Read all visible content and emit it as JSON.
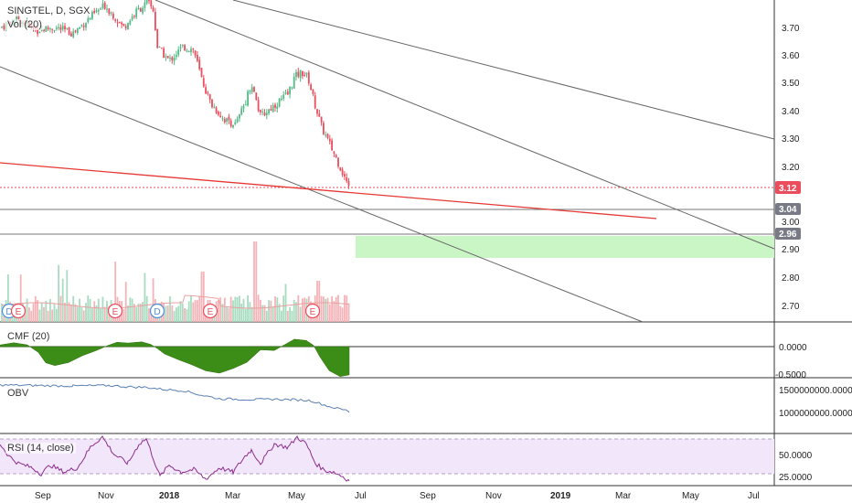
{
  "colors": {
    "up": "#53b987",
    "down": "#eb4d5c",
    "vol_up": "#a8dcc0",
    "vol_down": "#f5b3b8",
    "trend_gray": "#555555",
    "trend_red": "#e53935",
    "cmf_fill": "#3c8d17",
    "obv_line": "#5b7fb3",
    "rsi_line": "#8b2e8b",
    "rsi_band": "#f2e6fb",
    "green_zone": "#c9f6c4",
    "price_badge": "#eb4d5c",
    "level_badge": "#787b86"
  },
  "header": {
    "symbol": "SINGTEL, D, SGX",
    "vol_label": "Vol (20)"
  },
  "price_axis": {
    "ticks": [
      "3.70",
      "3.60",
      "3.50",
      "3.40",
      "3.30",
      "3.20",
      "3.00",
      "2.90",
      "2.80",
      "2.70"
    ],
    "current_price": "3.12",
    "levels": [
      "3.04",
      "2.96"
    ]
  },
  "time_axis": {
    "labels": [
      "Sep",
      "Nov",
      "2018",
      "Mar",
      "May",
      "Jul",
      "Sep",
      "Nov",
      "2019",
      "Mar",
      "May",
      "Jul"
    ]
  },
  "events": [
    "D",
    "E",
    "E",
    "D",
    "E",
    "E"
  ],
  "cmf": {
    "label": "CMF (20)",
    "ticks": [
      "0.0000",
      "-0.5000"
    ]
  },
  "obv": {
    "label": "OBV",
    "ticks": [
      "1500000000.0000",
      "1000000000.0000"
    ]
  },
  "rsi": {
    "label": "RSI (14, close)",
    "ticks": [
      "50.0000",
      "25.0000"
    ]
  },
  "chart_data": {
    "type": "candlestick",
    "title": "SINGTEL, D, SGX",
    "price_range": [
      2.64,
      3.8
    ],
    "current_price": 3.12,
    "horizontal_levels": [
      3.04,
      2.96
    ],
    "support_zone": [
      2.87,
      2.95
    ],
    "price_path": [
      {
        "month": "Sep 2017",
        "close": 3.7
      },
      {
        "month": "Oct 2017",
        "close": 3.72
      },
      {
        "month": "Nov 2017",
        "close": 3.72
      },
      {
        "month": "Dec 2017",
        "close": 3.78
      },
      {
        "month": "Jan 2018",
        "close": 3.58
      },
      {
        "month": "Feb 2018",
        "close": 3.4
      },
      {
        "month": "Mar 2018",
        "close": 3.36
      },
      {
        "month": "Apr 2018",
        "close": 3.42
      },
      {
        "month": "May 2018",
        "close": 3.53
      },
      {
        "month": "Jun 2018",
        "close": 3.12
      }
    ],
    "cmf_range": [
      -0.6,
      0.2
    ],
    "obv_range": [
      800000000,
      1700000000
    ],
    "rsi_range": [
      15,
      75
    ],
    "rsi_band": [
      30,
      70
    ]
  }
}
